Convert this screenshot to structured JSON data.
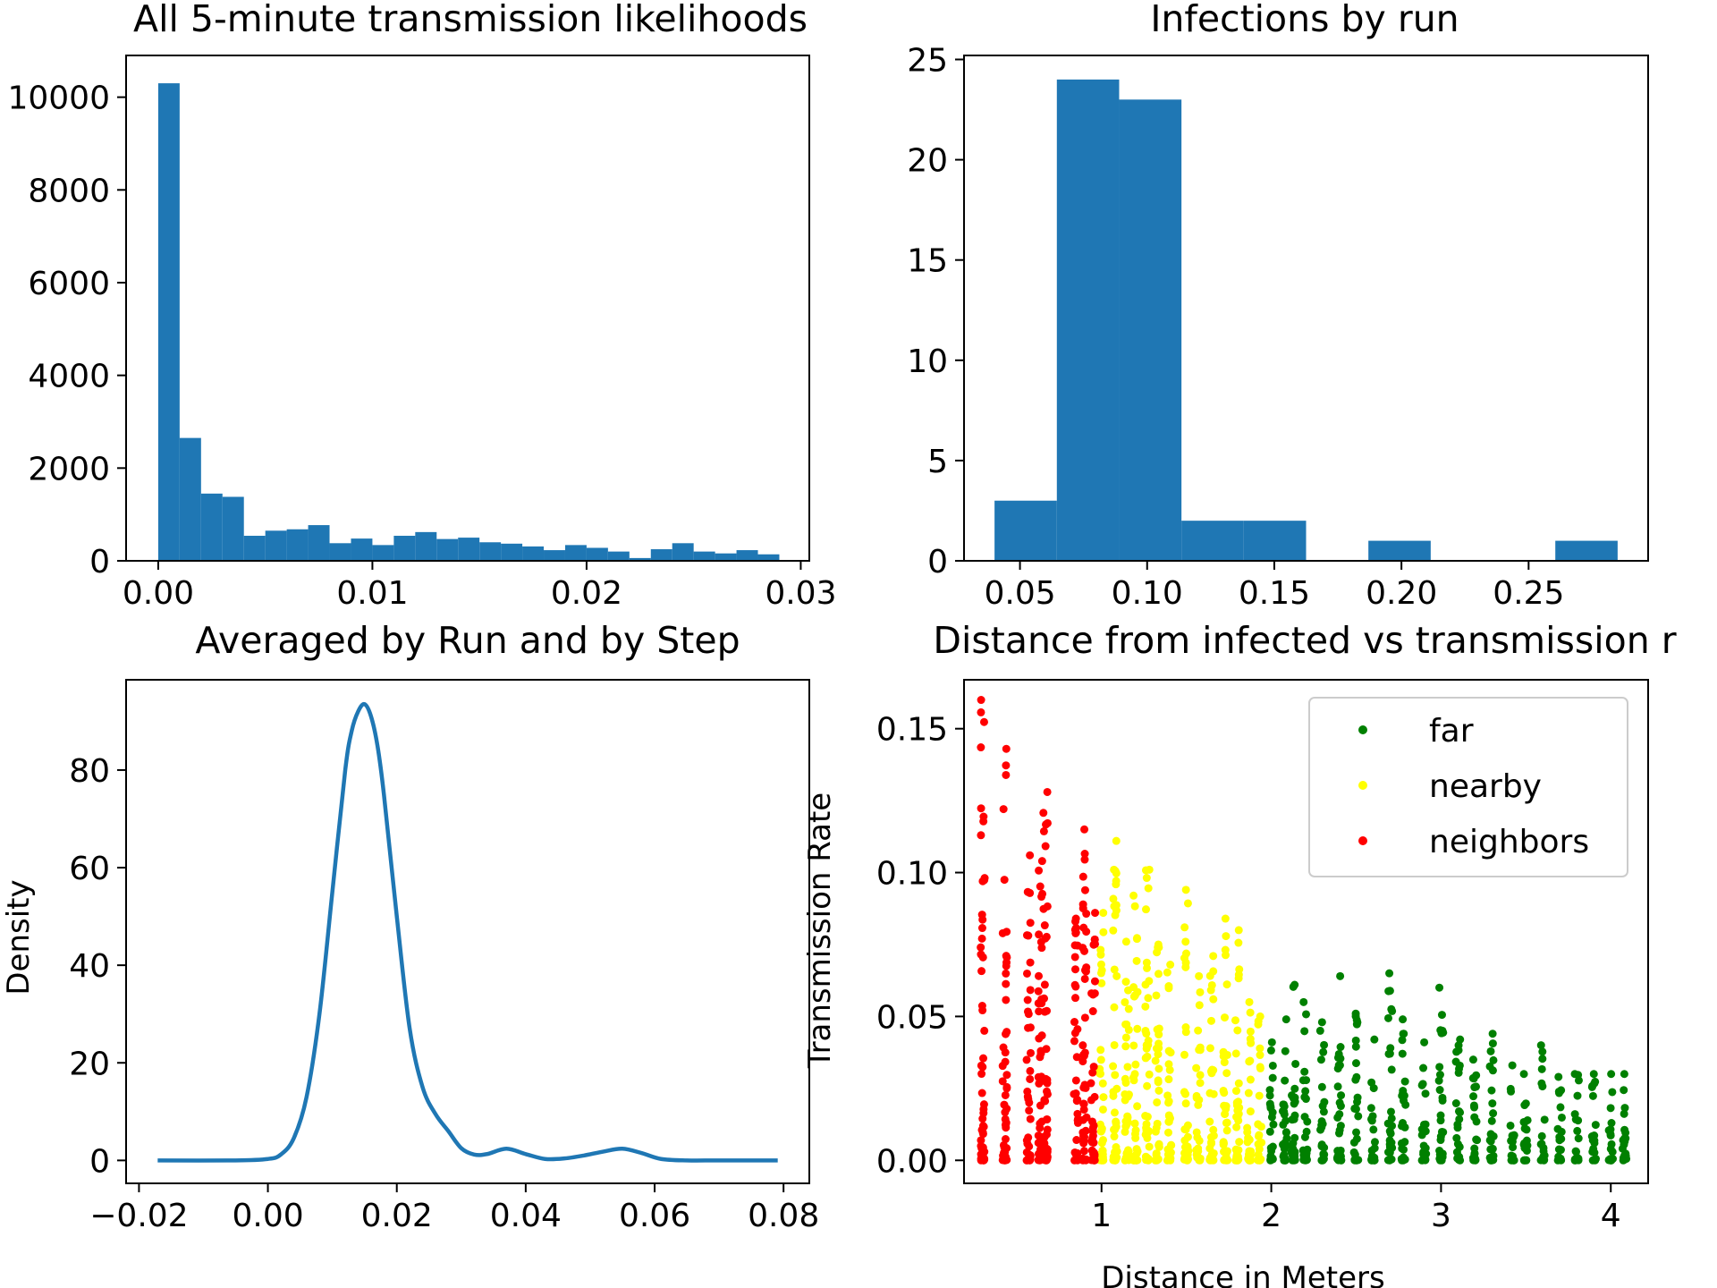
{
  "chart_data": [
    {
      "type": "bar",
      "title": "All 5-minute transmission likelihoods",
      "xlabel": "",
      "ylabel": "",
      "xlim": [
        -0.0015,
        0.0304
      ],
      "ylim": [
        0,
        10900
      ],
      "xticks": [
        0.0,
        0.01,
        0.02,
        0.03
      ],
      "xtick_labels": [
        "0.00",
        "0.01",
        "0.02",
        "0.03"
      ],
      "yticks": [
        0,
        2000,
        4000,
        6000,
        8000,
        10000
      ],
      "ytick_labels": [
        "0",
        "2000",
        "4000",
        "6000",
        "8000",
        "10000"
      ],
      "color": "#1f77b4",
      "bin_edges": [
        0,
        0.001,
        0.002,
        0.003,
        0.004,
        0.005,
        0.006,
        0.007,
        0.008,
        0.009,
        0.01,
        0.011,
        0.012,
        0.013,
        0.014,
        0.015,
        0.016,
        0.017,
        0.018,
        0.019,
        0.02,
        0.021,
        0.022,
        0.023,
        0.024,
        0.025,
        0.026,
        0.027,
        0.028,
        0.029,
        0.03
      ],
      "values": [
        10300,
        2650,
        1450,
        1380,
        540,
        650,
        680,
        770,
        380,
        480,
        340,
        540,
        620,
        470,
        500,
        400,
        370,
        310,
        230,
        340,
        280,
        200,
        60,
        250,
        380,
        200,
        160,
        230,
        140,
        0
      ]
    },
    {
      "type": "bar",
      "title": "Infections by run",
      "xlabel": "",
      "ylabel": "",
      "xlim": [
        0.028,
        0.297
      ],
      "ylim": [
        0,
        25.2
      ],
      "xticks": [
        0.05,
        0.1,
        0.15,
        0.2,
        0.25
      ],
      "xtick_labels": [
        "0.05",
        "0.10",
        "0.15",
        "0.20",
        "0.25"
      ],
      "yticks": [
        0,
        5,
        10,
        15,
        20,
        25
      ],
      "ytick_labels": [
        "0",
        "5",
        "10",
        "15",
        "20",
        "25"
      ],
      "color": "#1f77b4",
      "bin_edges": [
        0.04,
        0.0645,
        0.089,
        0.1135,
        0.138,
        0.1625,
        0.187,
        0.2115,
        0.236,
        0.2605,
        0.285
      ],
      "values": [
        3,
        24,
        23,
        2,
        2,
        0,
        1,
        0,
        0,
        1
      ]
    },
    {
      "type": "line",
      "title": "Averaged by Run and by Step",
      "xlabel": "",
      "ylabel": "Density",
      "xlim": [
        -0.022,
        0.084
      ],
      "ylim": [
        -4.7,
        98.5
      ],
      "xticks": [
        -0.02,
        0.0,
        0.02,
        0.04,
        0.06,
        0.08
      ],
      "xtick_labels": [
        "−0.02",
        "0.00",
        "0.02",
        "0.04",
        "0.06",
        "0.08"
      ],
      "yticks": [
        0,
        20,
        40,
        60,
        80
      ],
      "ytick_labels": [
        "0",
        "20",
        "40",
        "60",
        "80"
      ],
      "color": "#1f77b4",
      "x": [
        -0.0171,
        -0.005,
        0.0,
        0.002,
        0.004,
        0.006,
        0.008,
        0.01,
        0.012,
        0.013,
        0.014,
        0.015,
        0.016,
        0.017,
        0.018,
        0.02,
        0.022,
        0.024,
        0.026,
        0.028,
        0.03,
        0.032,
        0.034,
        0.037,
        0.04,
        0.043,
        0.046,
        0.049,
        0.052,
        0.055,
        0.058,
        0.061,
        0.065,
        0.07,
        0.0791
      ],
      "y": [
        0,
        0,
        0.3,
        1.2,
        4.5,
        13,
        30,
        55,
        80,
        88,
        92,
        93.5,
        91,
        85,
        75,
        50,
        27,
        15,
        9.5,
        6,
        2.5,
        1.2,
        1.3,
        2.4,
        1.3,
        0.3,
        0.4,
        1.0,
        1.8,
        2.4,
        1.5,
        0.3,
        0,
        0,
        0
      ]
    },
    {
      "type": "scatter",
      "title": "Distance from infected vs transmission r",
      "xlabel": "Distance in Meters",
      "ylabel": "Transmission Rate",
      "xlim": [
        0.19,
        4.22
      ],
      "ylim": [
        -0.008,
        0.167
      ],
      "xticks": [
        1,
        2,
        3,
        4
      ],
      "xtick_labels": [
        "1",
        "2",
        "3",
        "4"
      ],
      "yticks": [
        0.0,
        0.05,
        0.1,
        0.15
      ],
      "ytick_labels": [
        "0.00",
        "0.05",
        "0.10",
        "0.15"
      ],
      "legend_position": "top-right",
      "series": [
        {
          "name": "far",
          "color": "#008000",
          "columns": [
            {
              "x": 2.0,
              "max": 0.041
            },
            {
              "x": 2.08,
              "max": 0.049
            },
            {
              "x": 2.13,
              "max": 0.061
            },
            {
              "x": 2.2,
              "max": 0.055
            },
            {
              "x": 2.3,
              "max": 0.048
            },
            {
              "x": 2.4,
              "max": 0.064
            },
            {
              "x": 2.5,
              "max": 0.051
            },
            {
              "x": 2.6,
              "max": 0.042
            },
            {
              "x": 2.7,
              "max": 0.065
            },
            {
              "x": 2.78,
              "max": 0.049
            },
            {
              "x": 2.9,
              "max": 0.041
            },
            {
              "x": 3.0,
              "max": 0.06
            },
            {
              "x": 3.1,
              "max": 0.042
            },
            {
              "x": 3.2,
              "max": 0.035
            },
            {
              "x": 3.3,
              "max": 0.044
            },
            {
              "x": 3.42,
              "max": 0.033
            },
            {
              "x": 3.5,
              "max": 0.03
            },
            {
              "x": 3.6,
              "max": 0.04
            },
            {
              "x": 3.7,
              "max": 0.029
            },
            {
              "x": 3.8,
              "max": 0.03
            },
            {
              "x": 3.9,
              "max": 0.03
            },
            {
              "x": 4.0,
              "max": 0.03
            },
            {
              "x": 4.08,
              "max": 0.03
            }
          ]
        },
        {
          "name": "nearby",
          "color": "#ffff00",
          "columns": [
            {
              "x": 1.0,
              "max": 0.086
            },
            {
              "x": 1.08,
              "max": 0.111
            },
            {
              "x": 1.15,
              "max": 0.076
            },
            {
              "x": 1.2,
              "max": 0.092
            },
            {
              "x": 1.27,
              "max": 0.101
            },
            {
              "x": 1.33,
              "max": 0.075
            },
            {
              "x": 1.4,
              "max": 0.068
            },
            {
              "x": 1.5,
              "max": 0.094
            },
            {
              "x": 1.57,
              "max": 0.064
            },
            {
              "x": 1.65,
              "max": 0.071
            },
            {
              "x": 1.73,
              "max": 0.084
            },
            {
              "x": 1.8,
              "max": 0.08
            },
            {
              "x": 1.87,
              "max": 0.055
            },
            {
              "x": 1.93,
              "max": 0.05
            }
          ]
        },
        {
          "name": "neighbors",
          "color": "#ff0000",
          "columns": [
            {
              "x": 0.3,
              "max": 0.16
            },
            {
              "x": 0.43,
              "max": 0.143
            },
            {
              "x": 0.57,
              "max": 0.106
            },
            {
              "x": 0.64,
              "max": 0.104
            },
            {
              "x": 0.67,
              "max": 0.128
            },
            {
              "x": 0.85,
              "max": 0.084
            },
            {
              "x": 0.9,
              "max": 0.115
            },
            {
              "x": 0.95,
              "max": 0.086
            }
          ]
        }
      ]
    }
  ]
}
